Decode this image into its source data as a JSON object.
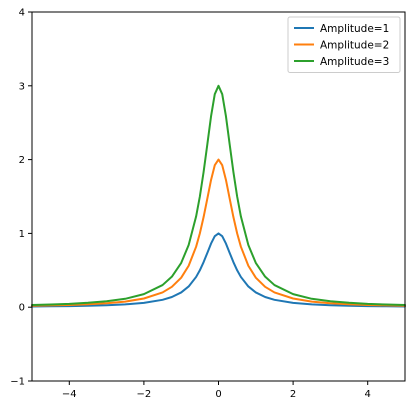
{
  "chart_data": {
    "type": "line",
    "title": "",
    "xlabel": "",
    "ylabel": "",
    "xlim": [
      -5,
      5
    ],
    "ylim": [
      -1,
      4
    ],
    "xticks": [
      -4,
      -2,
      0,
      2,
      4
    ],
    "yticks": [
      -1,
      0,
      1,
      2,
      3,
      4
    ],
    "grid": false,
    "legend_position": "top-right",
    "x": [
      -5,
      -4.5,
      -4,
      -3.5,
      -3,
      -2.5,
      -2,
      -1.5,
      -1.25,
      -1,
      -0.8,
      -0.6,
      -0.5,
      -0.4,
      -0.3,
      -0.2,
      -0.1,
      0,
      0.1,
      0.2,
      0.3,
      0.4,
      0.5,
      0.6,
      0.8,
      1,
      1.25,
      1.5,
      2,
      2.5,
      3,
      3.5,
      4,
      4.5,
      5
    ],
    "series": [
      {
        "name": "Amplitude=1",
        "color": "#1f77b4",
        "values": [
          0.01,
          0.012,
          0.015,
          0.02,
          0.027,
          0.038,
          0.059,
          0.1,
          0.138,
          0.2,
          0.281,
          0.41,
          0.5,
          0.61,
          0.735,
          0.862,
          0.962,
          1,
          0.962,
          0.862,
          0.735,
          0.61,
          0.5,
          0.41,
          0.281,
          0.2,
          0.138,
          0.1,
          0.059,
          0.038,
          0.027,
          0.02,
          0.015,
          0.012,
          0.01
        ]
      },
      {
        "name": "Amplitude=2",
        "color": "#ff7f0e",
        "values": [
          0.02,
          0.024,
          0.03,
          0.04,
          0.054,
          0.076,
          0.118,
          0.2,
          0.276,
          0.4,
          0.562,
          0.82,
          1,
          1.22,
          1.47,
          1.724,
          1.924,
          2,
          1.924,
          1.724,
          1.47,
          1.22,
          1,
          0.82,
          0.562,
          0.4,
          0.276,
          0.2,
          0.118,
          0.076,
          0.054,
          0.04,
          0.03,
          0.024,
          0.02
        ]
      },
      {
        "name": "Amplitude=3",
        "color": "#2ca02c",
        "values": [
          0.03,
          0.036,
          0.045,
          0.06,
          0.081,
          0.114,
          0.177,
          0.3,
          0.414,
          0.6,
          0.843,
          1.23,
          1.5,
          1.83,
          2.205,
          2.586,
          2.886,
          3,
          2.886,
          2.586,
          2.205,
          1.83,
          1.5,
          1.23,
          0.843,
          0.6,
          0.414,
          0.3,
          0.177,
          0.114,
          0.081,
          0.06,
          0.045,
          0.036,
          0.03
        ]
      }
    ]
  }
}
